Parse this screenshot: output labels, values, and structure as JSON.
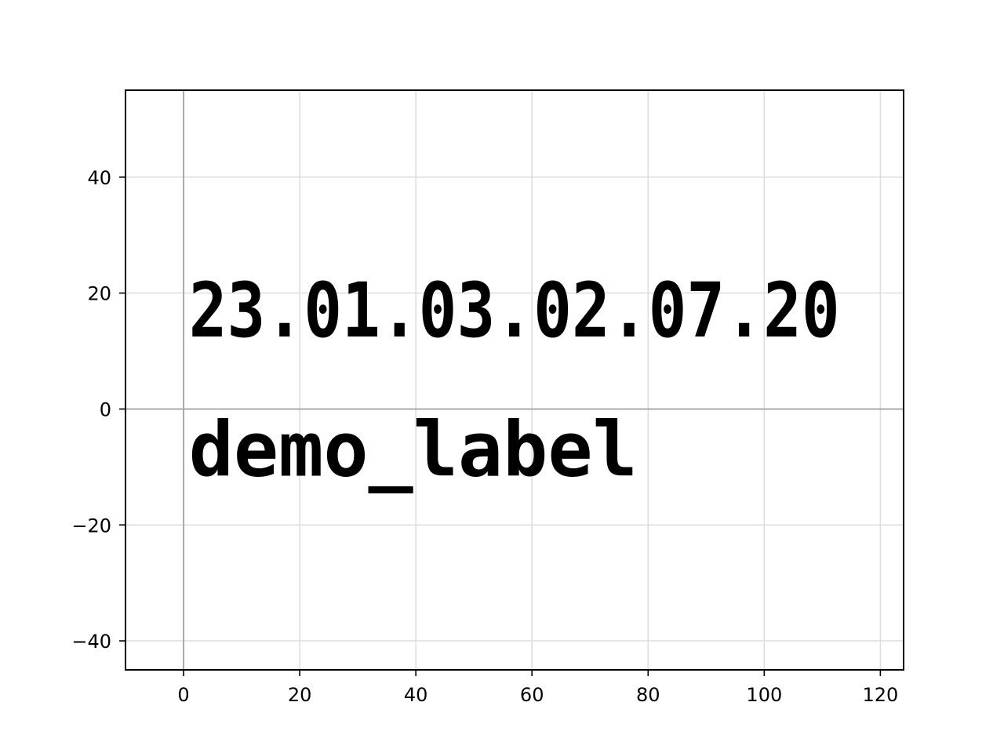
{
  "chart_data": {
    "type": "scatter",
    "title": "",
    "xlabel": "",
    "ylabel": "",
    "xlim": [
      -10,
      124
    ],
    "ylim": [
      -45,
      55
    ],
    "x_ticks": [
      0,
      20,
      40,
      60,
      80,
      100,
      120
    ],
    "y_ticks": [
      -40,
      -20,
      0,
      20,
      40
    ],
    "x_tick_labels": [
      "0",
      "20",
      "40",
      "60",
      "80",
      "100",
      "120"
    ],
    "y_tick_labels": [
      "−40",
      "−20",
      "0",
      "20",
      "40"
    ],
    "grid": true,
    "reference_lines": {
      "x": 0,
      "y": 0
    },
    "annotations": [
      {
        "text": "23.01.03.02.07.20",
        "x": 0.5,
        "y": 12.5
      },
      {
        "text": "demo_label",
        "x": 0.5,
        "y": -11.5
      }
    ],
    "colors": {
      "text": "#000000",
      "grid": "#dddddd",
      "axis_line": "#aaaaaa",
      "frame": "#000000"
    }
  }
}
